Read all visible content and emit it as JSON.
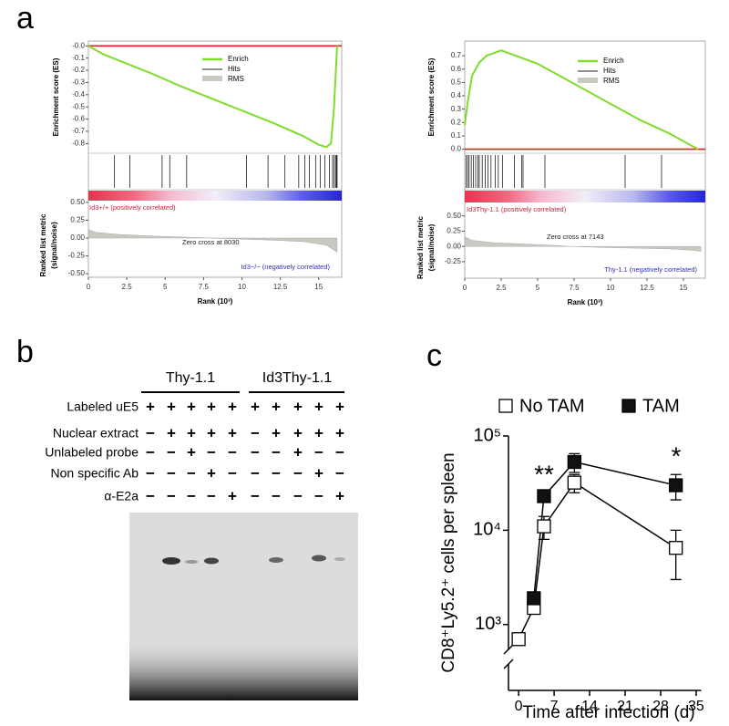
{
  "panel_labels": [
    "a",
    "b",
    "c"
  ],
  "chart_data": [
    {
      "type": "gsea",
      "y_label": "Enrichment score (ES)",
      "metric_label": [
        "Ranked list metric",
        "(signal/noise)"
      ],
      "x_label": "Rank (10³)",
      "xlim": [
        0,
        16.5
      ],
      "xticks": [
        0,
        2.5,
        5,
        7.5,
        10,
        12.5,
        15
      ],
      "ylim": [
        -0.88,
        0.04
      ],
      "yticks": [
        {
          "value": 0,
          "label": "-0.0"
        },
        -0.1,
        -0.2,
        -0.3,
        -0.4,
        -0.5,
        -0.6,
        -0.7,
        -0.8
      ],
      "series": [
        {
          "name": "Enrich",
          "color": "#7fdc2a",
          "x": [
            0,
            1,
            2,
            4,
            6,
            8,
            10,
            12,
            14,
            15,
            15.5,
            15.8,
            16.0,
            16.2
          ],
          "values": [
            0,
            -0.07,
            -0.12,
            -0.22,
            -0.33,
            -0.43,
            -0.53,
            -0.63,
            -0.74,
            -0.81,
            -0.83,
            -0.8,
            -0.5,
            0
          ]
        }
      ],
      "hits": {
        "name": "Hits",
        "color": "#222222",
        "x": [
          1.7,
          2.7,
          4.8,
          5.3,
          6.4,
          10.3,
          11.7,
          12.8,
          13.7,
          14.1,
          14.4,
          14.8,
          15.1,
          15.4,
          15.7,
          15.9,
          16.0,
          16.1,
          16.15,
          16.2
        ]
      },
      "rms": {
        "name": "RMS",
        "color": "#c9c9c2"
      },
      "metric": {
        "ylim": [
          -0.55,
          0.55
        ],
        "yticks": [
          {
            "value": 0.5,
            "label": "0.50"
          },
          {
            "value": 0.25,
            "label": "0.25"
          },
          {
            "value": 0,
            "label": "0.00"
          },
          {
            "value": -0.25,
            "label": "-0.25"
          },
          {
            "value": -0.5,
            "label": "-0.50"
          }
        ],
        "x": [
          0,
          0.5,
          2,
          4,
          6,
          8.03,
          10,
          12,
          14,
          15.5,
          16.2
        ],
        "values": [
          0.12,
          0.08,
          0.05,
          0.03,
          0.015,
          0,
          -0.015,
          -0.03,
          -0.05,
          -0.1,
          -0.2
        ]
      },
      "annotations": [
        "Id3+/+ (positively correlated)",
        "Zero cross at 8030",
        "Id3−/− (negatively correlated)"
      ]
    },
    {
      "type": "gsea",
      "y_label": "Enrichment score (ES)",
      "metric_label": [
        "Ranked list metric",
        "(signal/noise)"
      ],
      "x_label": "Rank (10³)",
      "xlim": [
        0,
        16.5
      ],
      "xticks": [
        0,
        2.5,
        5,
        7.5,
        10,
        12.5,
        15
      ],
      "ylim": [
        -0.03,
        0.81
      ],
      "yticks": [
        {
          "value": 0,
          "label": "0.0"
        },
        0.1,
        0.2,
        0.3,
        0.4,
        0.5,
        0.6,
        0.7
      ],
      "series": [
        {
          "name": "Enrich",
          "color": "#7fdc2a",
          "x": [
            0,
            0.2,
            0.5,
            1,
            1.5,
            2,
            2.5,
            3,
            3.5,
            4,
            5,
            6,
            8,
            10,
            12,
            13,
            14,
            15,
            16
          ],
          "values": [
            0.18,
            0.35,
            0.55,
            0.65,
            0.7,
            0.72,
            0.74,
            0.72,
            0.7,
            0.68,
            0.64,
            0.58,
            0.46,
            0.34,
            0.22,
            0.17,
            0.12,
            0.06,
            0
          ]
        }
      ],
      "hits": {
        "name": "Hits",
        "color": "#222222",
        "x": [
          0.1,
          0.2,
          0.3,
          0.45,
          0.6,
          0.75,
          0.9,
          1.0,
          1.2,
          1.4,
          1.6,
          1.8,
          2.1,
          2.3,
          2.6,
          3.4,
          3.9,
          4.0,
          5.5,
          11,
          13.5
        ]
      },
      "rms": {
        "name": "RMS",
        "color": "#c9c9c2"
      },
      "metric": {
        "ylim": [
          -0.52,
          0.72
        ],
        "yticks": [
          {
            "value": 0.5,
            "label": "0.50"
          },
          {
            "value": 0.25,
            "label": "0.25"
          },
          {
            "value": 0,
            "label": "0.00"
          },
          {
            "value": -0.25,
            "label": "-0.25"
          }
        ],
        "x": [
          0,
          0.5,
          2,
          4,
          6,
          7.143,
          10,
          12,
          14,
          15.5,
          16.2
        ],
        "values": [
          0.16,
          0.1,
          0.06,
          0.04,
          0.02,
          0,
          -0.02,
          -0.03,
          -0.04,
          -0.06,
          -0.08
        ]
      },
      "annotations": [
        "Id3Thy-1.1 (positively correlated)",
        "Zero cross at 7143",
        "Thy-1.1 (negatively correlated)"
      ]
    },
    {
      "type": "line",
      "x_label": "Time after infection (d)",
      "y_label": "CD8⁺Ly5.2⁺ cells per spleen",
      "xlim": [
        -2,
        36
      ],
      "xticks": [
        0,
        7,
        14,
        21,
        28,
        35
      ],
      "ylim": [
        200,
        100000
      ],
      "log_y": true,
      "yticks": [
        {
          "value": 1000,
          "label": "10³"
        },
        {
          "value": 10000,
          "label": "10⁴"
        },
        {
          "value": 100000,
          "label": "10⁵"
        }
      ],
      "series": [
        {
          "name": "No TAM",
          "color": "#ffffff",
          "x": [
            0,
            3,
            5,
            11,
            31
          ],
          "values": [
            700,
            1500,
            11000,
            32000,
            6500
          ],
          "errors": [
            0,
            200,
            3000,
            7000,
            3500
          ]
        },
        {
          "name": "TAM",
          "color": "#111111",
          "x": [
            3,
            5,
            11,
            31
          ],
          "values": [
            1900,
            23000,
            53000,
            30000
          ],
          "errors": [
            200,
            3000,
            12000,
            9000
          ]
        }
      ],
      "annotations": [
        "**",
        "*"
      ]
    }
  ],
  "gel": {
    "groups": [
      "Thy-1.1",
      "Id3Thy-1.1"
    ],
    "rows": [
      {
        "label": "Labeled uE5",
        "lanes": [
          "+",
          "+",
          "+",
          "+",
          "+",
          "+",
          "+",
          "+",
          "+",
          "+"
        ]
      },
      {
        "label": "Nuclear extract",
        "lanes": [
          "−",
          "+",
          "+",
          "+",
          "+",
          "−",
          "+",
          "+",
          "+",
          "+"
        ]
      },
      {
        "label": "Unlabeled probe",
        "lanes": [
          "−",
          "−",
          "+",
          "−",
          "−",
          "−",
          "−",
          "+",
          "−",
          "−"
        ]
      },
      {
        "label": "Non specific Ab",
        "lanes": [
          "−",
          "−",
          "−",
          "+",
          "−",
          "−",
          "−",
          "−",
          "+",
          "−"
        ]
      },
      {
        "label": "α-E2a",
        "lanes": [
          "−",
          "−",
          "−",
          "−",
          "+",
          "−",
          "−",
          "−",
          "−",
          "+"
        ]
      }
    ]
  }
}
